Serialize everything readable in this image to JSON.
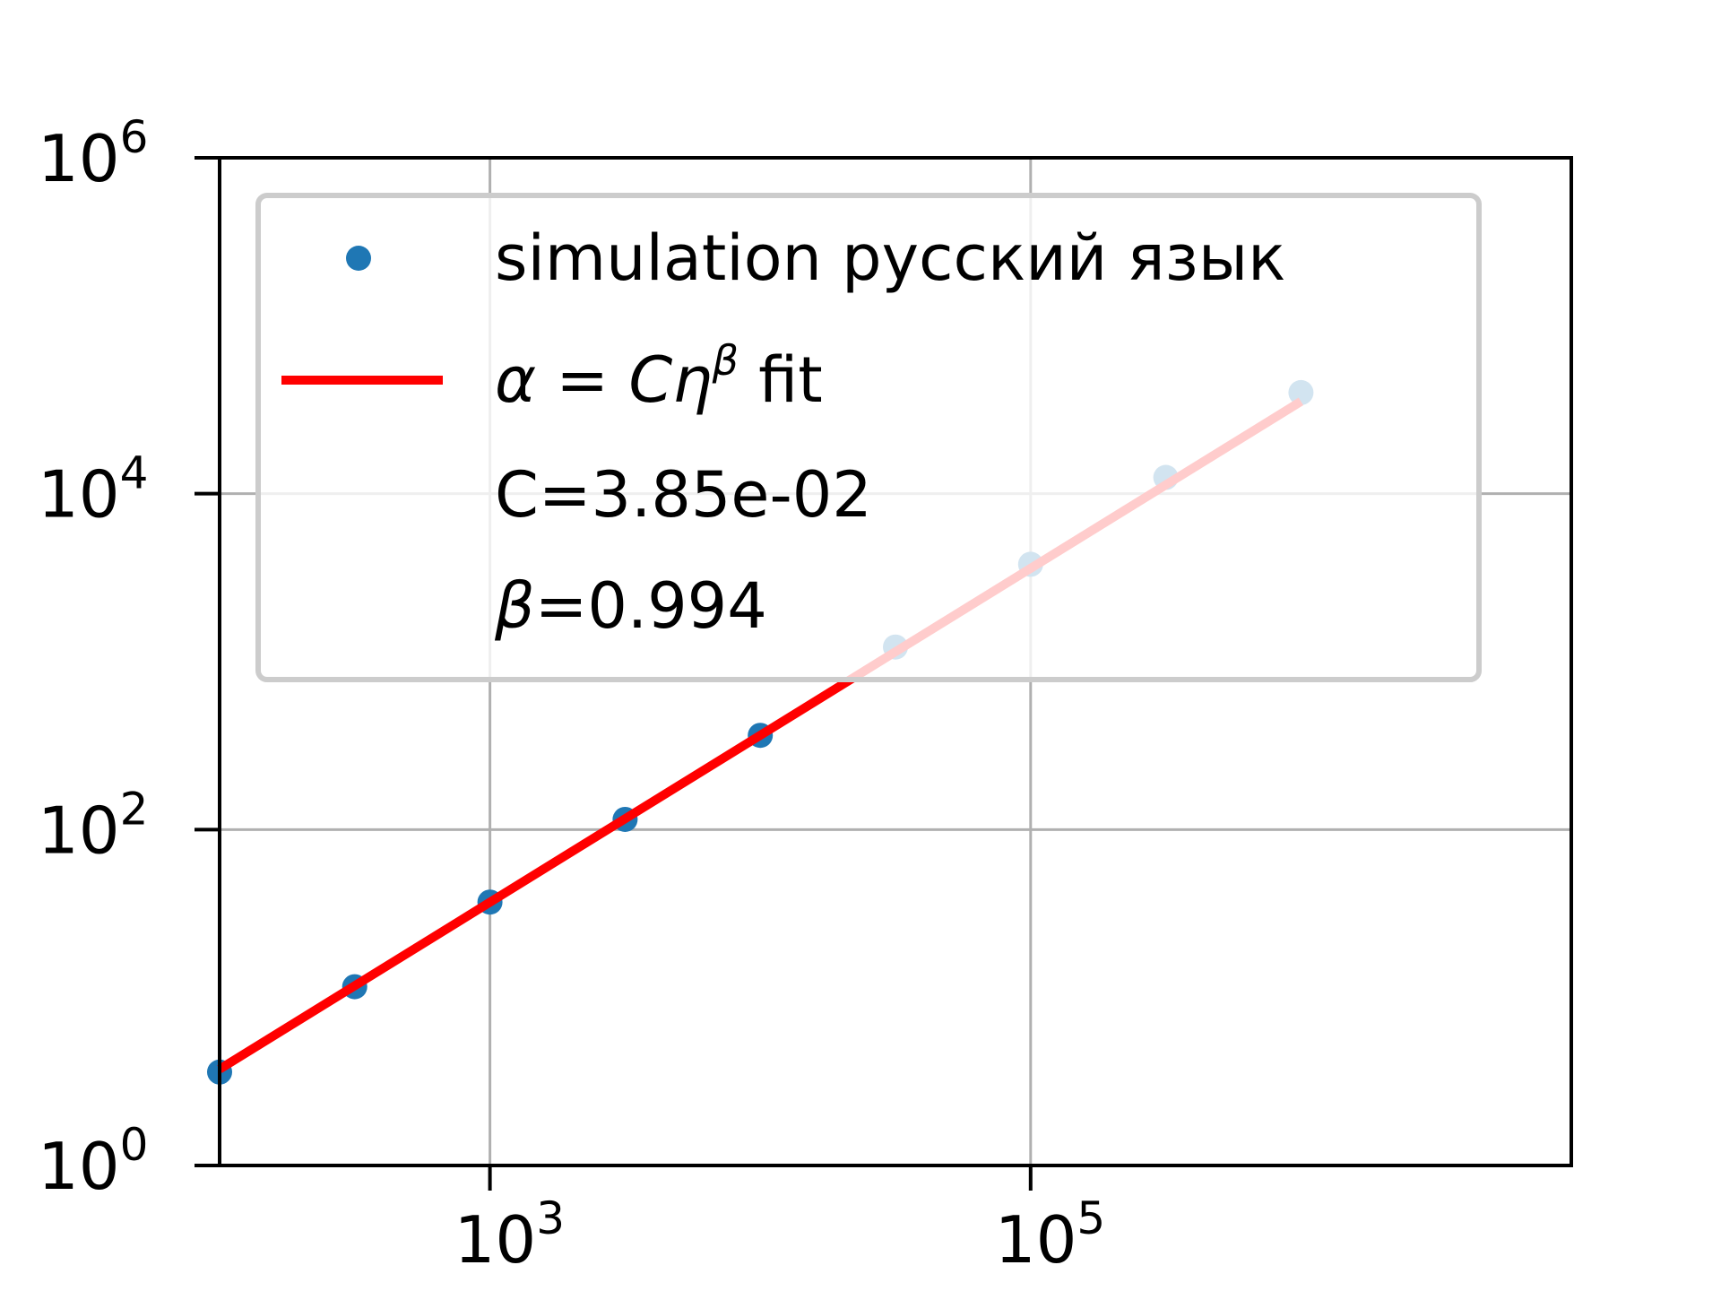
{
  "colors": {
    "scatter": "#1f77b4",
    "fit": "#ff0000",
    "grid": "#b0b0b0",
    "axes": "#000000",
    "legend_border": "#cccccc"
  },
  "chart_data": {
    "type": "scatter",
    "xscale": "log",
    "yscale": "log",
    "xlim": [
      100,
      10000000
    ],
    "ylim": [
      1,
      1000000
    ],
    "grid": true,
    "legend_position": "upper-left",
    "x_ticks": [
      {
        "value": 1000,
        "base": "10",
        "exp": "3"
      },
      {
        "value": 100000,
        "base": "10",
        "exp": "5"
      }
    ],
    "y_ticks": [
      {
        "value": 1,
        "base": "10",
        "exp": "0"
      },
      {
        "value": 100,
        "base": "10",
        "exp": "2"
      },
      {
        "value": 10000,
        "base": "10",
        "exp": "4"
      },
      {
        "value": 1000000,
        "base": "10",
        "exp": "6"
      }
    ],
    "series": [
      {
        "name": "simulation русский язык",
        "type": "scatter",
        "x": [
          100,
          316,
          1000,
          3162,
          10000,
          31623,
          100000,
          316228,
          1000000
        ],
        "y": [
          3.6,
          11.6,
          37,
          115,
          364,
          1222,
          3800,
          12500,
          40000
        ]
      },
      {
        "name_parts": [
          "α",
          " = ",
          "Cη",
          "β",
          " fit"
        ],
        "type": "line",
        "C": 0.0385,
        "beta": 0.994,
        "x_range": [
          100,
          1000000
        ]
      }
    ],
    "legend_extra": [
      {
        "text": "C=3.85e-02"
      },
      {
        "symbol": "β",
        "text": "=0.994"
      }
    ]
  }
}
